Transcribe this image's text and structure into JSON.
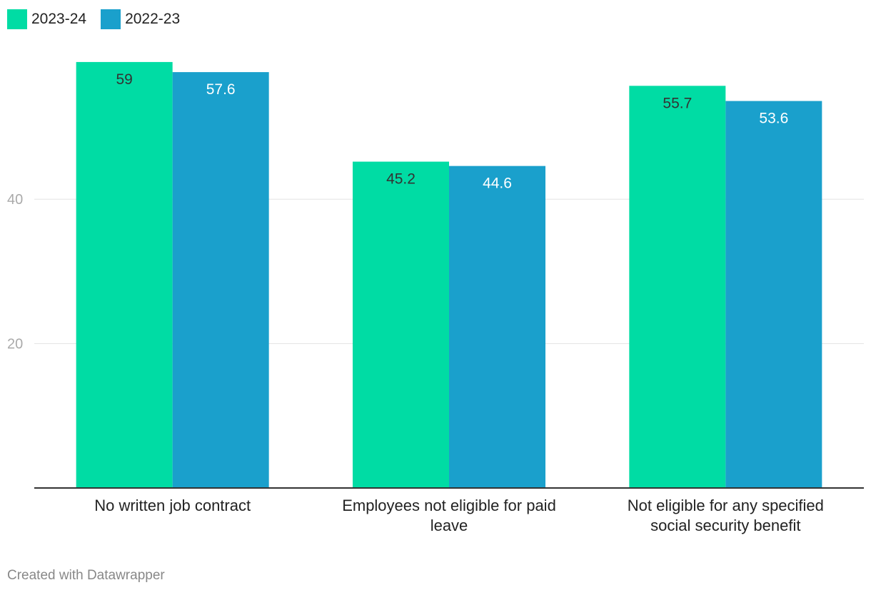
{
  "chart_data": {
    "type": "bar",
    "categories": [
      [
        "No written job contract"
      ],
      [
        "Employees not eligible for paid",
        "leave"
      ],
      [
        "Not eligible for any specified",
        "social security benefit"
      ]
    ],
    "series": [
      {
        "name": "2023-24",
        "color": "#00dca4",
        "values": [
          59,
          45.2,
          55.7
        ],
        "labels": [
          "59",
          "45.2",
          "55.7"
        ]
      },
      {
        "name": "2022-23",
        "color": "#1aa0cc",
        "values": [
          57.6,
          44.6,
          53.6
        ],
        "labels": [
          "57.6",
          "44.6",
          "53.6"
        ]
      }
    ],
    "yticks": [
      20,
      40
    ],
    "ytick_labels": [
      "20",
      "40"
    ],
    "ylim": [
      0,
      60
    ],
    "grid": true,
    "legend_position": "top-left"
  },
  "footer": {
    "credit": "Created with Datawrapper"
  }
}
